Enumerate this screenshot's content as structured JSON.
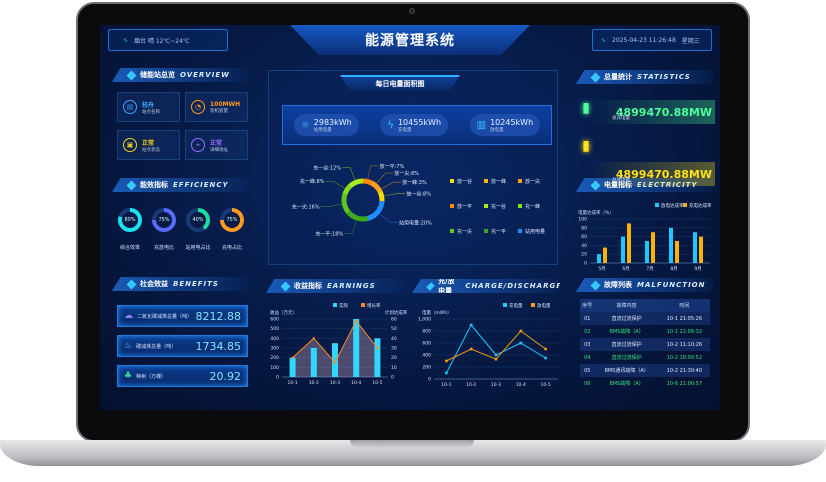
{
  "header": {
    "title": "能源管理系统",
    "weather": "烟台 晴 12℃~24℃",
    "datetime": "2025-04-23 11:26:48",
    "weekday": "星期三"
  },
  "overview": {
    "title": "储能站总览",
    "title_en": "OVERVIEW",
    "cards": [
      {
        "value": "轻舟",
        "label": "站点名称",
        "color": "#3aa7ff",
        "icon": "document-icon"
      },
      {
        "value": "100MWH",
        "label": "装机容量",
        "color": "#ff9a1f",
        "icon": "pie-icon"
      },
      {
        "value": "正常",
        "label": "站点状态",
        "color": "#f0d21c",
        "icon": "status-icon"
      },
      {
        "value": "正常",
        "label": "详细地址",
        "color": "#9b6bff",
        "icon": "location-pin-icon"
      }
    ]
  },
  "efficiency": {
    "title": "能效指标",
    "title_en": "EFFICIENCY",
    "rings": [
      {
        "value": 80,
        "text": "80%",
        "label": "综合效率",
        "color": "#19e3f0"
      },
      {
        "value": 75,
        "text": "75%",
        "label": "充放电比",
        "color": "#5a6cff"
      },
      {
        "value": 40,
        "text": "40%",
        "label": "站用电占比",
        "color": "#19e0a0"
      },
      {
        "value": 75,
        "text": "75%",
        "label": "充电占比",
        "color": "#ff9a1f"
      }
    ]
  },
  "benefits": {
    "title": "社会效益",
    "title_en": "BENEFITS",
    "items": [
      {
        "label": "二氧化碳减排总量（吨）",
        "value": "8212.88",
        "icon": "cloud-icon",
        "color": "#8a7cff"
      },
      {
        "label": "碳减排总量（吨）",
        "value": "1734.85",
        "icon": "leaf-icon",
        "color": "#4fd0ff"
      },
      {
        "label": "种树（万棵）",
        "value": "20.92",
        "icon": "tree-icon",
        "color": "#2fe08a"
      }
    ]
  },
  "daily": {
    "title": "每日电量面积图",
    "stats": [
      {
        "value": "2983kWh",
        "label": "站用电量",
        "icon": "bulb-icon"
      },
      {
        "value": "10455kWh",
        "label": "充电量",
        "icon": "charging-icon"
      },
      {
        "value": "10245kWh",
        "label": "放电量",
        "icon": "battery-icon"
      }
    ],
    "chart_data": {
      "type": "pie",
      "donut": true,
      "slices": [
        {
          "name": "放一平",
          "value": 7,
          "label": "放一平:7%",
          "color": "#ff8a00"
        },
        {
          "name": "放一尖",
          "value": 8,
          "label": "放一尖:8%",
          "color": "#ff9f1a"
        },
        {
          "name": "放一峰",
          "value": 3,
          "label": "放一峰:3%",
          "color": "#ffb300"
        },
        {
          "name": "放一谷",
          "value": 8,
          "label": "放一谷:8%",
          "color": "#f5d90a"
        },
        {
          "name": "站用电量",
          "value": 20,
          "label": "站用电量:20%",
          "color": "#1e8fff"
        },
        {
          "name": "充一平",
          "value": 18,
          "label": "充一平:18%",
          "color": "#3ca81a"
        },
        {
          "name": "充一尖",
          "value": 16,
          "label": "充一尖:16%",
          "color": "#5cc71e"
        },
        {
          "name": "充一峰",
          "value": 8,
          "label": "充一峰:8%",
          "color": "#7fe01a"
        },
        {
          "name": "充一谷",
          "value": 12,
          "label": "充一谷:12%",
          "color": "#a6ee1a"
        }
      ],
      "legend": [
        "放一谷",
        "放一峰",
        "放一尖",
        "放一平",
        "充一谷",
        "充一峰",
        "充一尖",
        "充一平",
        "站用电量"
      ],
      "legend_colors": [
        "#f5d90a",
        "#ffb300",
        "#ff9f1a",
        "#ff8a00",
        "#a6ee1a",
        "#7fe01a",
        "#5cc71e",
        "#3ca81a",
        "#1e8fff"
      ]
    }
  },
  "earnings": {
    "title": "收益指标",
    "title_en": "EARNINGS",
    "chart_data": {
      "type": "bar+line",
      "categories": [
        "10-1",
        "10-2",
        "10-3",
        "10-4",
        "10-5"
      ],
      "series": [
        {
          "name": "实际",
          "type": "bar",
          "axis": "left",
          "values": [
            200,
            300,
            350,
            600,
            400
          ],
          "color": "#33d6ff"
        },
        {
          "name": "增长率",
          "type": "line",
          "axis": "right",
          "values": [
            20,
            40,
            15,
            58,
            30
          ],
          "color": "#ff8a1a"
        }
      ],
      "ylabel": "收益（万元）",
      "ylabel_right": "计划达成率",
      "ylim": [
        0,
        600
      ],
      "ylim_right": [
        0,
        60
      ],
      "yticks": [
        0,
        100,
        200,
        300,
        400,
        500,
        600
      ],
      "yticks_right": [
        0,
        10,
        20,
        30,
        40,
        50,
        60
      ],
      "legend": "top-right"
    }
  },
  "charge": {
    "title": "充/放电量",
    "title_en": "CHARGE/DISCHARGE",
    "chart_data": {
      "type": "line",
      "categories": [
        "10-1",
        "10-2",
        "10-3",
        "10-4",
        "10-5"
      ],
      "series": [
        {
          "name": "充电量",
          "values": [
            100,
            900,
            400,
            600,
            350
          ],
          "color": "#1ec8ff"
        },
        {
          "name": "放电量",
          "values": [
            300,
            500,
            330,
            800,
            500
          ],
          "color": "#f0a010"
        }
      ],
      "ylabel": "电量（mWh）",
      "ylim": [
        0,
        1000
      ],
      "yticks": [
        "0",
        "200",
        "400",
        "600",
        "800",
        "1,000"
      ],
      "legend": "top-right"
    }
  },
  "statistics": {
    "title": "总量统计",
    "title_en": "STATISTICS",
    "items": [
      {
        "value": "4899470.88MW",
        "label": "总充电量",
        "color": "#4dff9a",
        "icon": "charge-station-icon"
      },
      {
        "value": "4899470.88MW",
        "label": "总放电量",
        "color": "#ffe31a",
        "icon": "discharge-station-icon"
      }
    ]
  },
  "electricity": {
    "title": "电量指标",
    "title_en": "ELECTRICITY",
    "chart_data": {
      "type": "bar",
      "categories": [
        "5月",
        "6月",
        "7月",
        "8月",
        "9月"
      ],
      "series": [
        {
          "name": "放电达成率",
          "values": [
            20,
            60,
            50,
            80,
            70
          ],
          "color": "#1ec8ff"
        },
        {
          "name": "充电达成率",
          "values": [
            35,
            90,
            70,
            50,
            60
          ],
          "color": "#ffb000"
        }
      ],
      "ylabel": "电量达成率（%）",
      "ylim": [
        0,
        100
      ],
      "yticks": [
        0,
        20,
        40,
        60,
        80,
        100
      ],
      "legend": "top-right"
    }
  },
  "malfunction": {
    "title": "故障列表",
    "title_en": "MALFUNCTION",
    "columns": [
      "序号",
      "故障内容",
      "时间"
    ],
    "rows": [
      {
        "no": "01",
        "content": "直流过流保护",
        "time": "10-1 21:05:26",
        "highlight": false
      },
      {
        "no": "02",
        "content": "BMS故障（A）",
        "time": "10-1 22:06:32",
        "highlight": true
      },
      {
        "no": "03",
        "content": "直流过流保护",
        "time": "10-2 11:10:26",
        "highlight": false
      },
      {
        "no": "04",
        "content": "直流过流保护",
        "time": "10-2 18:00:52",
        "highlight": true
      },
      {
        "no": "05",
        "content": "BMS通讯故障（A）",
        "time": "10-2 21:30:40",
        "highlight": false
      },
      {
        "no": "06",
        "content": "BMS故障（A）",
        "time": "10-6 21:00:57",
        "highlight": true
      }
    ],
    "highlight_color": "#35e07a"
  }
}
